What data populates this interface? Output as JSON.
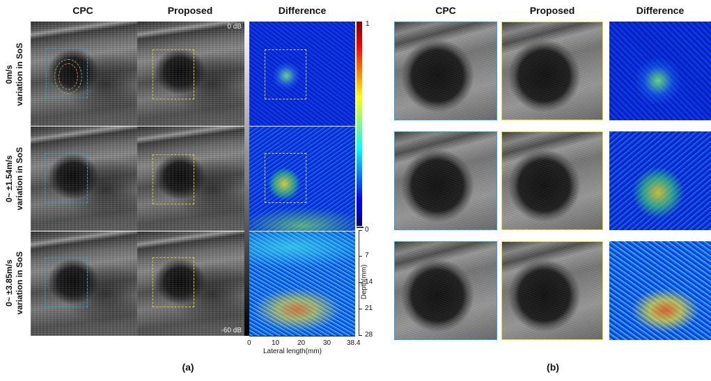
{
  "headers_a": {
    "cpc": "CPC",
    "proposed": "Proposed",
    "difference": "Difference"
  },
  "headers_b": {
    "cpc": "CPC",
    "proposed": "Proposed",
    "difference": "Difference"
  },
  "rows": [
    {
      "line1": "0m/s",
      "line2": "variation in SoS"
    },
    {
      "line1": "0~ ±1.54m/s",
      "line2": "variation in SoS"
    },
    {
      "line1": "0~ ±3.85m/s",
      "line2": "variation in SoS"
    }
  ],
  "db": {
    "top": "0 dB",
    "bottom": "-60 dB"
  },
  "colorbar": {
    "max": "1",
    "min": "0"
  },
  "depth": {
    "label": "Depth(mm)",
    "ticks": [
      "0",
      "7",
      "14",
      "21",
      "28"
    ]
  },
  "lateral": {
    "label": "Lateral length(mm)",
    "ticks": [
      "0",
      "10",
      "20",
      "30",
      "38.4"
    ]
  },
  "captions": {
    "a": "(a)",
    "b": "(b)"
  },
  "colors": {
    "cpc_box": "#1ea8d8",
    "proposed_box": "#e8dc2a",
    "diff_box": "#d8d8d8"
  }
}
